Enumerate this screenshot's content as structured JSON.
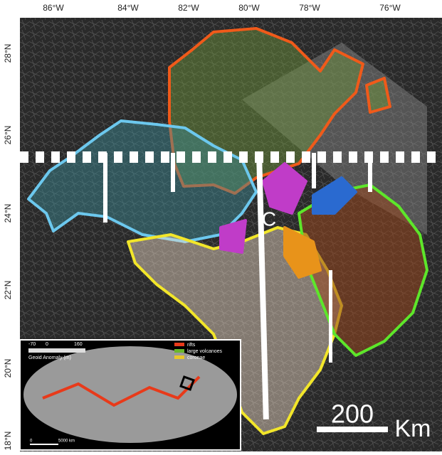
{
  "longitude_labels": [
    "86°W",
    "84°W",
    "82°W",
    "80°W",
    "78°W",
    "76°W"
  ],
  "latitude_labels": [
    "28°N",
    "26°N",
    "24°N",
    "22°N",
    "20°N",
    "18°N"
  ],
  "feature_label": "C",
  "scale_bar": {
    "value": "200",
    "unit": "Km"
  },
  "inset": {
    "legend_title": "Geoid Anomaly (m)",
    "colorbar_ticks": [
      "-70",
      "0",
      "160"
    ],
    "legend_items": [
      "rifts",
      "large volcanoes",
      "coronae"
    ],
    "scale_labels": [
      "0",
      "5000 km"
    ]
  }
}
